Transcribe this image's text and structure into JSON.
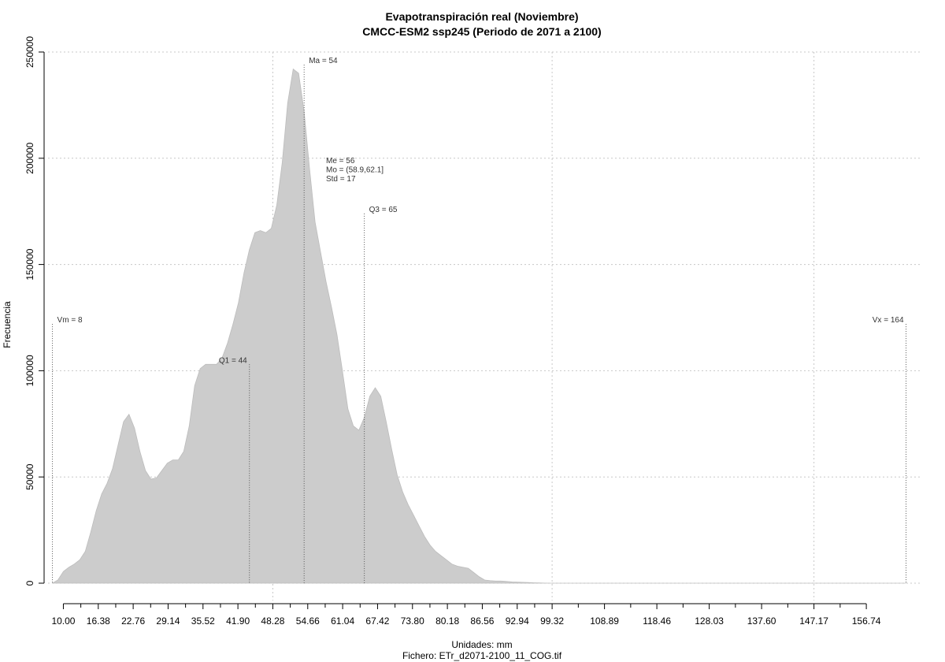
{
  "chart_data": {
    "type": "area",
    "title": "Evapotranspiración real (Noviembre)",
    "subtitle": "CMCC-ESM2 ssp245 (Periodo de 2071 a 2100)",
    "xlabel": "Unidades: mm",
    "ylabel": "Frecuencia",
    "footer": "Fichero: ETr_d2071-2100_11_COG.tif",
    "xlim": [
      7.2,
      166.8
    ],
    "ylim": [
      0,
      250000
    ],
    "grid": true,
    "fill_color": "#cccccc",
    "x_ticks": [
      "10.00",
      "16.38",
      "22.76",
      "29.14",
      "35.52",
      "41.90",
      "48.28",
      "54.66",
      "61.04",
      "67.42",
      "73.80",
      "80.18",
      "86.56",
      "92.94",
      "99.32",
      "108.89",
      "118.46",
      "128.03",
      "137.60",
      "147.17",
      "156.74"
    ],
    "y_ticks": [
      {
        "value": 0,
        "label": "0"
      },
      {
        "value": 50000,
        "label": "50000"
      },
      {
        "value": 100000,
        "label": "100000"
      },
      {
        "value": 150000,
        "label": "150000"
      },
      {
        "value": 200000,
        "label": "200000"
      },
      {
        "value": 250000,
        "label": "250000"
      }
    ],
    "x_grid": [
      48.28,
      99.32,
      147.17
    ],
    "series": [
      {
        "x": [
          8,
          9,
          10,
          11,
          12,
          13,
          14,
          15,
          16,
          17,
          18,
          19,
          20,
          21,
          22,
          23,
          24,
          25,
          26,
          27,
          28,
          29,
          30,
          31,
          32,
          33,
          34,
          35,
          36,
          37,
          38,
          39,
          40,
          41,
          42,
          43,
          44,
          45,
          46,
          47,
          48,
          49,
          50,
          51,
          52,
          53,
          54,
          55,
          56,
          57,
          58,
          59,
          60,
          61,
          62,
          63,
          64,
          65,
          66,
          67,
          68,
          69,
          70,
          71,
          72,
          73,
          74,
          75,
          76,
          77,
          78,
          79,
          80,
          81,
          82,
          83,
          84,
          85,
          86,
          87,
          88,
          89,
          90,
          91,
          92,
          93,
          94,
          95,
          96,
          97,
          98,
          99,
          100,
          101,
          102,
          103,
          105,
          108,
          110,
          115,
          120,
          130,
          140,
          150,
          160,
          164
        ],
        "y": [
          0,
          1500,
          5500,
          7500,
          9000,
          11000,
          15000,
          24000,
          34000,
          42000,
          47000,
          54000,
          65000,
          76000,
          79500,
          73000,
          62000,
          53000,
          49000,
          49500,
          53000,
          56500,
          58000,
          58000,
          62000,
          74000,
          93000,
          101000,
          103000,
          103000,
          103000,
          106000,
          113000,
          122000,
          132000,
          146000,
          157000,
          165000,
          166000,
          165000,
          167000,
          178000,
          198000,
          226000,
          242000,
          240000,
          222000,
          195000,
          170000,
          156000,
          142000,
          130000,
          117000,
          100000,
          82000,
          74000,
          72000,
          78000,
          88000,
          92000,
          88000,
          76000,
          63000,
          51000,
          43000,
          37000,
          32000,
          27000,
          22000,
          18000,
          15000,
          13000,
          11000,
          9000,
          8000,
          7500,
          7000,
          5000,
          3000,
          1500,
          1200,
          1000,
          1000,
          800,
          600,
          500,
          400,
          300,
          200,
          100,
          50,
          0,
          0,
          0,
          0,
          0,
          0,
          0,
          0,
          0,
          0,
          0,
          0,
          0,
          0,
          0
        ]
      }
    ],
    "reference_lines": [
      {
        "x": 8,
        "y_top": 122000,
        "label": "Vm = 8",
        "anchor": "start"
      },
      {
        "x": 44,
        "y_top": 103000,
        "label": "Q1 = 44",
        "anchor": "end"
      },
      {
        "x": 54,
        "y_top": 244000,
        "label": "Ma = 54",
        "anchor": "start"
      },
      {
        "x": 65,
        "y_top": 174000,
        "label": "Q3 = 65",
        "anchor": "start"
      },
      {
        "x": 164,
        "y_top": 122000,
        "label": "Vx = 164",
        "anchor": "end"
      }
    ],
    "annotation_block": {
      "x": 58,
      "y": 200000,
      "lines": [
        "Me = 56",
        "Mo = (58.9,62.1]",
        "Std = 17"
      ]
    }
  }
}
